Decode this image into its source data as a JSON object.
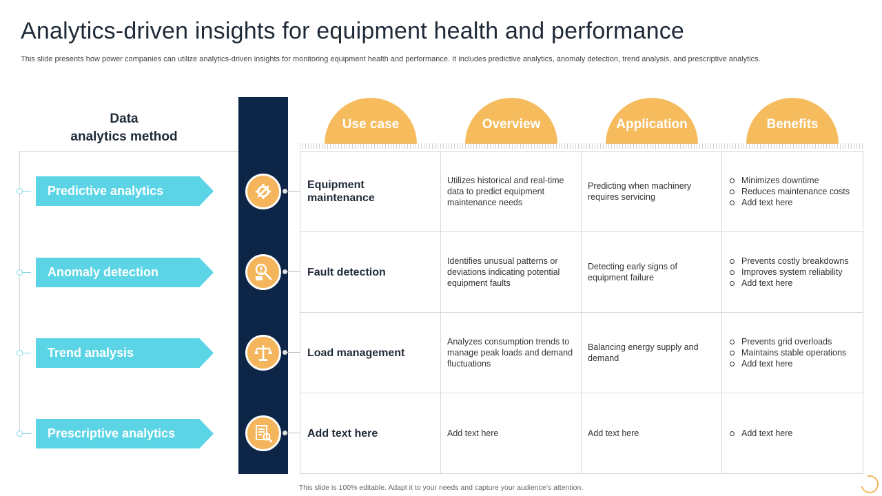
{
  "slide": {
    "title": "Analytics-driven insights for equipment health and performance",
    "subtitle": "This slide presents how power companies can utilize analytics-driven insights for monitoring equipment health and performance. It includes predictive analytics, anomaly detection, trend analysis, and prescriptive analytics.",
    "footer": "This slide is 100% editable. Adapt it to your needs and capture your audience’s attention."
  },
  "method_heading": {
    "line1": "Data",
    "line2": "analytics method"
  },
  "methods": [
    {
      "label": "Predictive analytics",
      "icon": "wrench-gear-icon"
    },
    {
      "label": "Anomaly detection",
      "icon": "alert-search-icon"
    },
    {
      "label": "Trend analysis",
      "icon": "balance-scale-icon"
    },
    {
      "label": "Prescriptive analytics",
      "icon": "checklist-search-icon"
    }
  ],
  "columns": [
    "Use case",
    "Overview",
    "Application",
    "Benefits"
  ],
  "rows": [
    {
      "use_case": "Equipment maintenance",
      "overview": "Utilizes historical and real-time data to predict equipment maintenance needs",
      "application": "Predicting when machinery requires servicing",
      "benefits": [
        "Minimizes downtime",
        "Reduces maintenance costs",
        "Add text here"
      ]
    },
    {
      "use_case": "Fault detection",
      "overview": "Identifies unusual patterns or deviations indicating potential equipment faults",
      "application": "Detecting early signs of equipment failure",
      "benefits": [
        "Prevents costly breakdowns",
        "Improves system reliability",
        "Add text here"
      ]
    },
    {
      "use_case": "Load management",
      "overview": "Analyzes consumption trends to manage peak loads and demand fluctuations",
      "application": "Balancing energy supply and demand",
      "benefits": [
        "Prevents grid overloads",
        "Maintains stable operations",
        "Add text here"
      ]
    },
    {
      "use_case": "Add text here",
      "overview": "Add text here",
      "application": "Add text here",
      "benefits": [
        "Add text here"
      ]
    }
  ],
  "colors": {
    "accent_cyan": "#5bd4e6",
    "accent_orange": "#f6bb5c",
    "navy": "#0d2547"
  }
}
